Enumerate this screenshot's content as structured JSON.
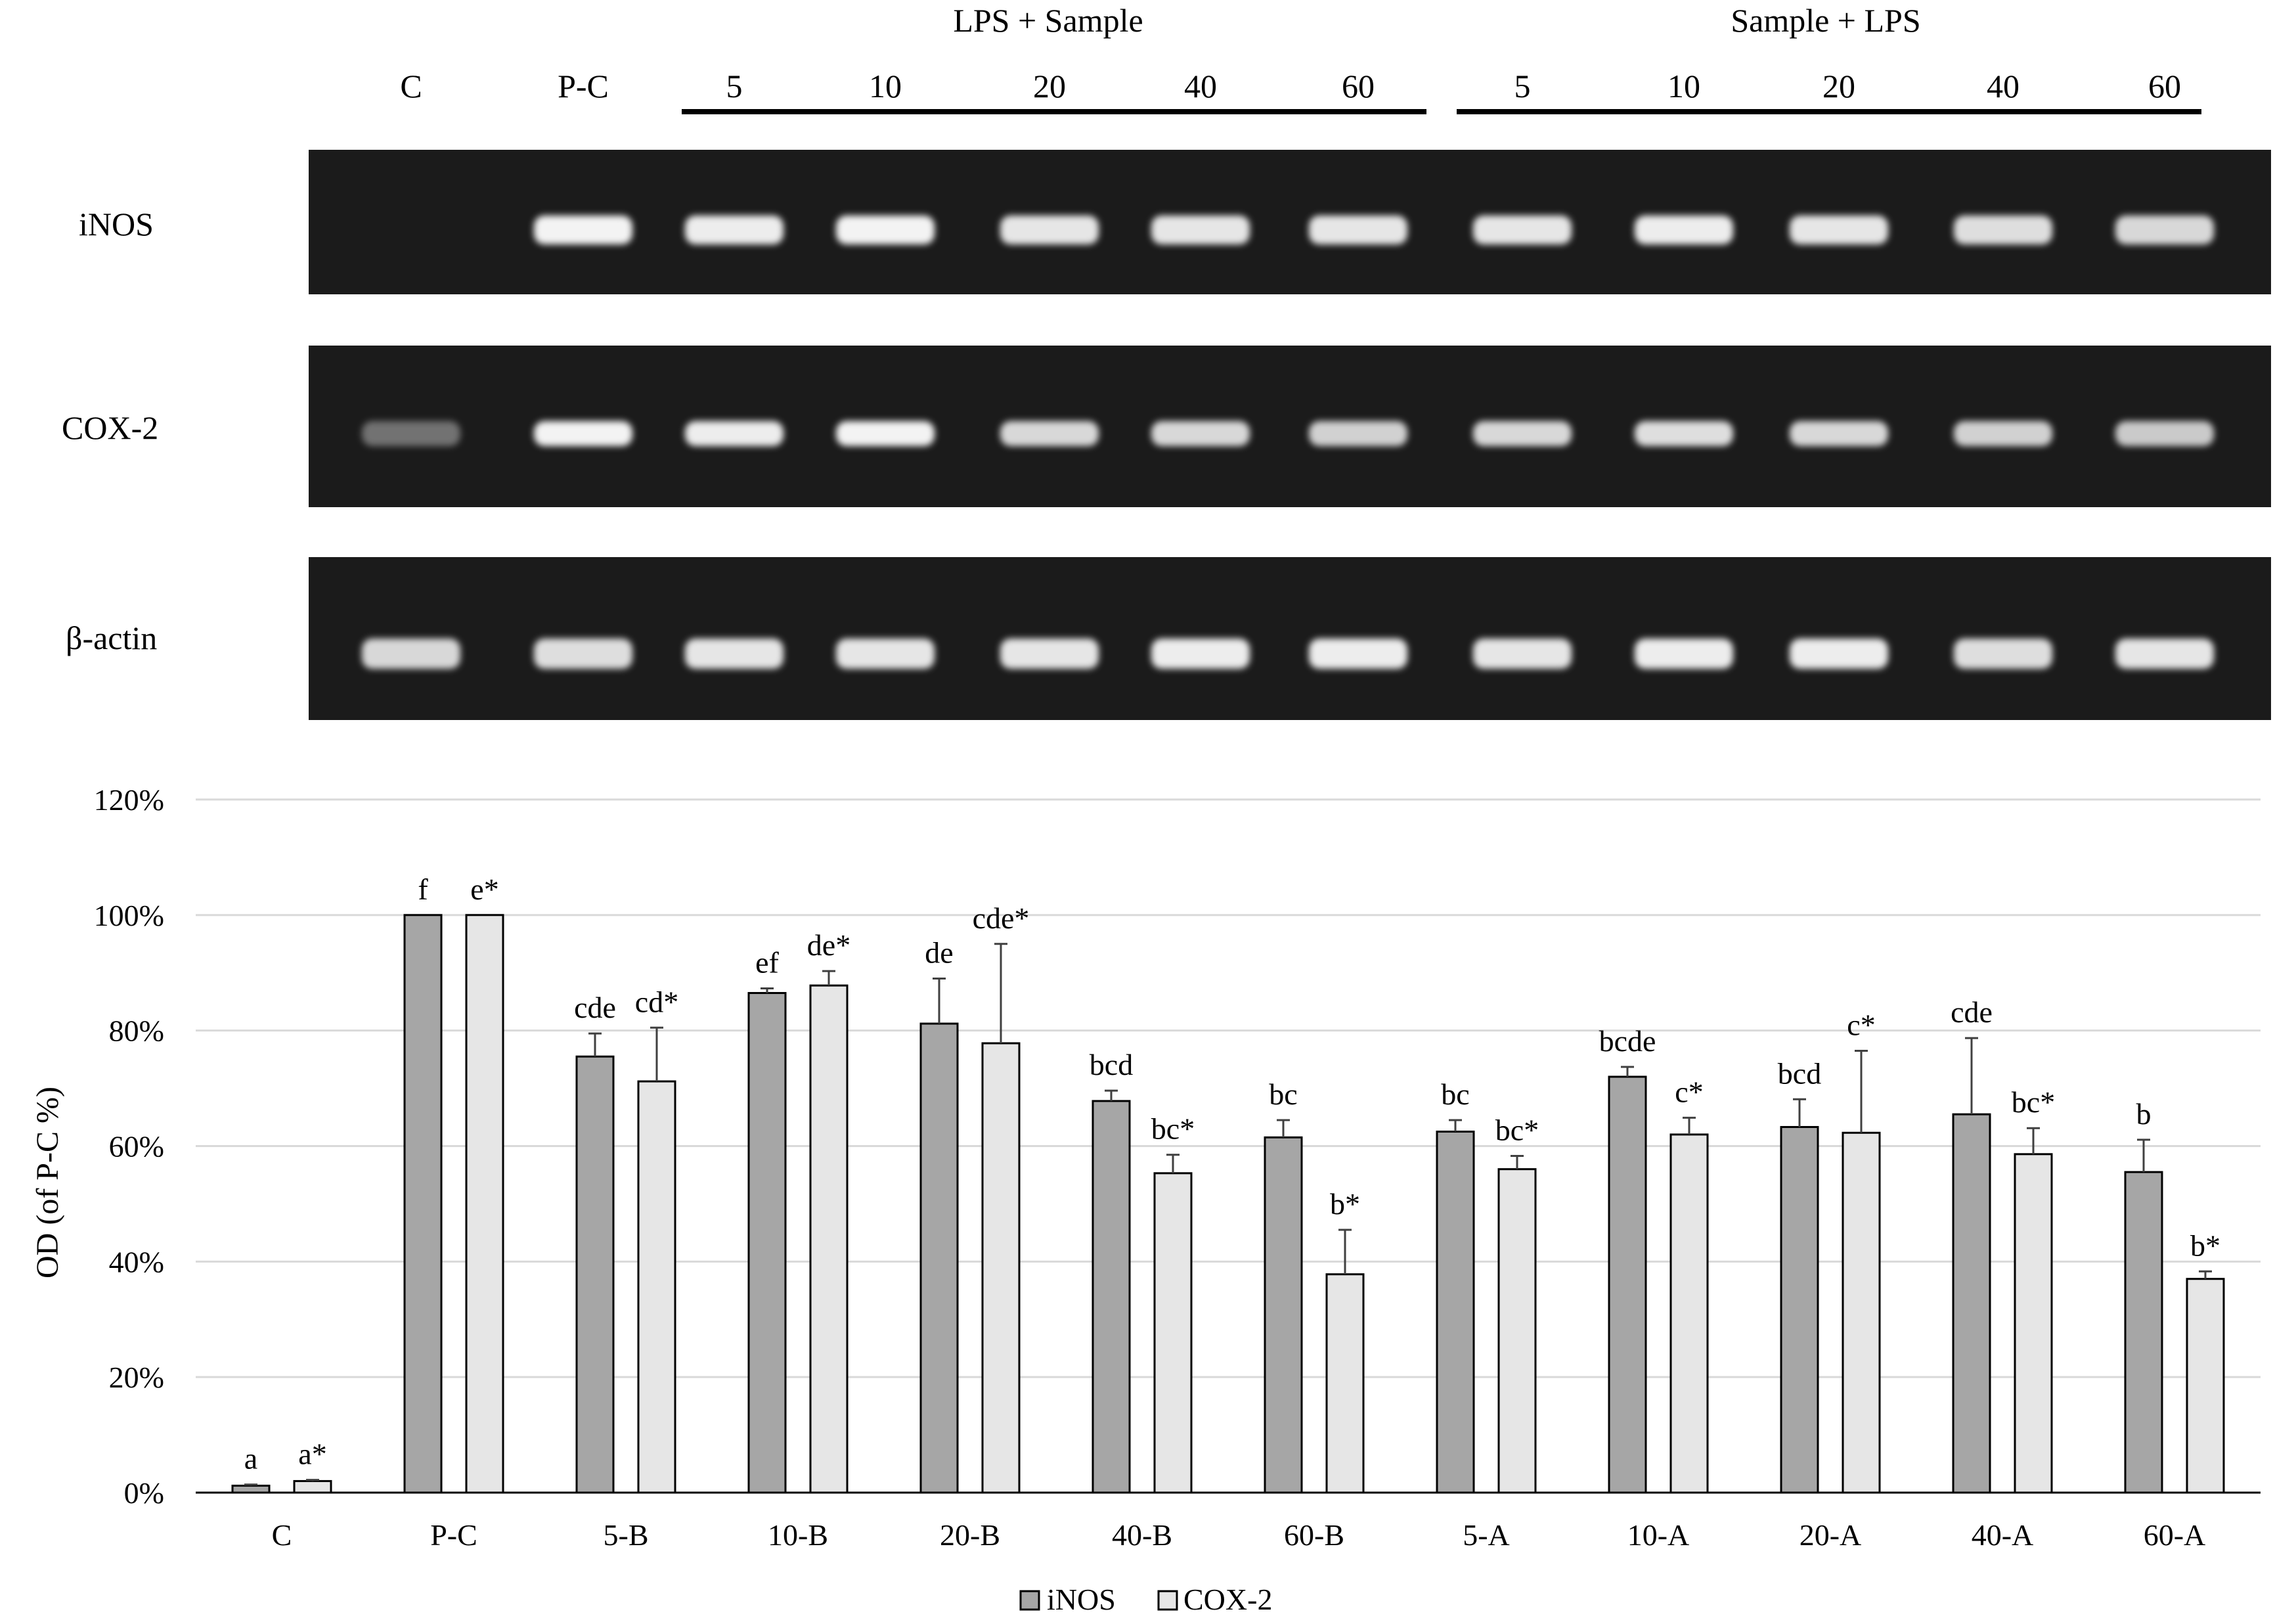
{
  "gel": {
    "lane_labels": [
      "C",
      "P-C",
      "5",
      "10",
      "20",
      "40",
      "60",
      "5",
      "10",
      "20",
      "40",
      "60"
    ],
    "group_labels": [
      "LPS + Sample",
      "Sample + LPS"
    ],
    "rows": [
      {
        "label": "iNOS",
        "band_intensity": [
          0,
          1.0,
          0.95,
          1.0,
          0.9,
          0.9,
          0.9,
          0.9,
          0.95,
          0.9,
          0.85,
          0.8
        ]
      },
      {
        "label": "COX-2",
        "band_intensity": [
          0.05,
          1.0,
          0.95,
          1.0,
          0.8,
          0.8,
          0.75,
          0.8,
          0.85,
          0.8,
          0.75,
          0.7
        ]
      },
      {
        "label": "β-actin",
        "band_intensity": [
          0.8,
          0.85,
          0.9,
          0.9,
          0.9,
          0.95,
          0.95,
          0.9,
          0.95,
          0.95,
          0.85,
          0.9
        ]
      }
    ]
  },
  "chart_data": {
    "type": "bar",
    "ylabel": "OD (of P-C %)",
    "ylim": [
      0,
      120
    ],
    "yticks": [
      0,
      20,
      40,
      60,
      80,
      100,
      120
    ],
    "ytick_labels": [
      "0%",
      "20%",
      "40%",
      "60%",
      "80%",
      "100%",
      "120%"
    ],
    "grid": true,
    "legend_position": "bottom",
    "categories": [
      "C",
      "P-C",
      "5-B",
      "10-B",
      "20-B",
      "40-B",
      "60-B",
      "5-A",
      "10-A",
      "20-A",
      "40-A",
      "60-A"
    ],
    "series": [
      {
        "name": "iNOS",
        "color": "#a6a6a6",
        "values": [
          1.2,
          100,
          75.5,
          86.5,
          81.2,
          67.8,
          61.5,
          62.5,
          72.0,
          63.3,
          65.5,
          55.5
        ],
        "errors": [
          0.2,
          0,
          4.0,
          0.8,
          7.8,
          1.8,
          3.0,
          2.0,
          1.7,
          4.8,
          13.2,
          5.6
        ],
        "annotations": [
          "a",
          "f",
          "cde",
          "ef",
          "de",
          "bcd",
          "bc",
          "bc",
          "bcde",
          "bcd",
          "cde",
          "b"
        ]
      },
      {
        "name": "COX-2",
        "color": "#e6e6e6",
        "values": [
          2.0,
          100,
          71.2,
          87.8,
          77.8,
          55.3,
          37.8,
          56.0,
          62.0,
          62.3,
          58.6,
          37.0
        ],
        "errors": [
          0.2,
          0,
          9.3,
          2.5,
          17.2,
          3.2,
          7.7,
          2.3,
          2.9,
          14.2,
          4.5,
          1.3
        ],
        "annotations": [
          "a*",
          "e*",
          "cd*",
          "de*",
          "cde*",
          "bc*",
          "b*",
          "bc*",
          "c*",
          "c*",
          "bc*",
          "b*"
        ]
      }
    ]
  },
  "colors": {
    "gel_background": "#1b1b1b",
    "band": "#ffffff",
    "axis": "#000000",
    "grid": "#d9d9d9",
    "error_bar": "#404040"
  }
}
